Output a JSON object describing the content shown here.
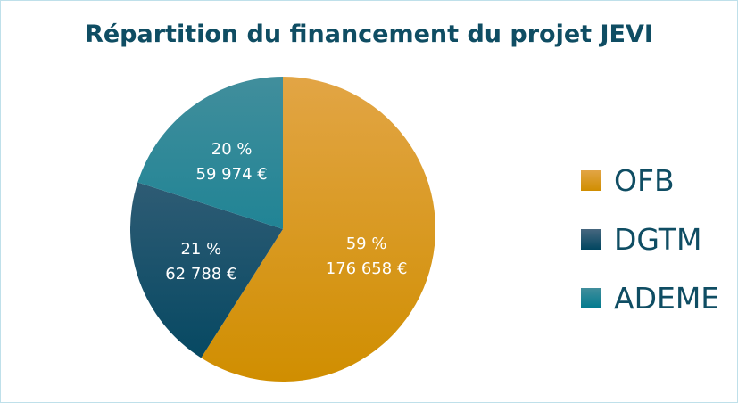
{
  "chart_data": {
    "type": "pie",
    "title": "Répartition du financement du projet JEVI",
    "legend_position": "right",
    "slices": [
      {
        "name": "OFB",
        "value": 176658,
        "percent": 59,
        "pct_label": "59 %",
        "value_label": "176 658 €",
        "color_top": "#e2a545",
        "color_bottom": "#d08e00"
      },
      {
        "name": "DGTM",
        "value": 62788,
        "percent": 21,
        "pct_label": "21 %",
        "value_label": "62 788 €",
        "color_top": "#46677f",
        "color_bottom": "#014660"
      },
      {
        "name": "ADEME",
        "value": 59974,
        "percent": 20,
        "pct_label": "20 %",
        "value_label": "59 974 €",
        "color_top": "#418e9c",
        "color_bottom": "#007a8e"
      }
    ]
  }
}
